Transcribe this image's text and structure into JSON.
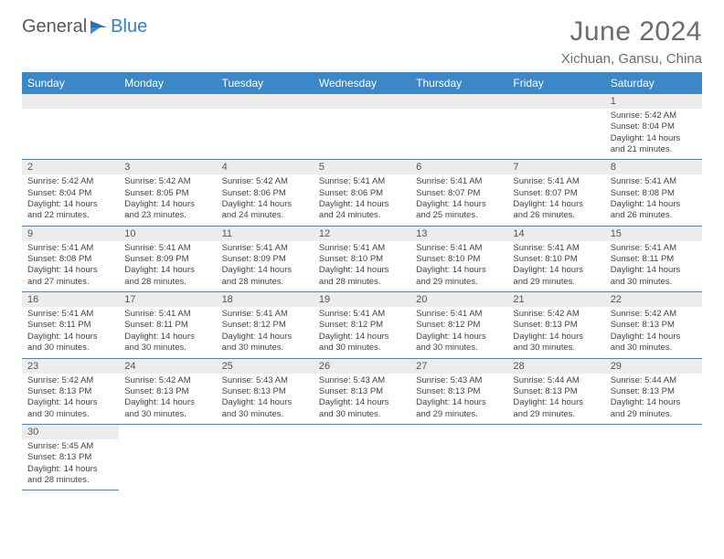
{
  "logo": {
    "part1": "General",
    "part2": "Blue"
  },
  "title": "June 2024",
  "location": "Xichuan, Gansu, China",
  "colors": {
    "header_bg": "#3c87c7",
    "header_fg": "#ffffff",
    "daynum_bg": "#ececec",
    "rule": "#3c87c7",
    "title_fg": "#6d6d6d",
    "logo_gray": "#555a5e",
    "logo_blue": "#3a7fc0"
  },
  "days_of_week": [
    "Sunday",
    "Monday",
    "Tuesday",
    "Wednesday",
    "Thursday",
    "Friday",
    "Saturday"
  ],
  "weeks": [
    [
      null,
      null,
      null,
      null,
      null,
      null,
      {
        "n": "1",
        "sunrise": "Sunrise: 5:42 AM",
        "sunset": "Sunset: 8:04 PM",
        "daylight1": "Daylight: 14 hours",
        "daylight2": "and 21 minutes."
      }
    ],
    [
      {
        "n": "2",
        "sunrise": "Sunrise: 5:42 AM",
        "sunset": "Sunset: 8:04 PM",
        "daylight1": "Daylight: 14 hours",
        "daylight2": "and 22 minutes."
      },
      {
        "n": "3",
        "sunrise": "Sunrise: 5:42 AM",
        "sunset": "Sunset: 8:05 PM",
        "daylight1": "Daylight: 14 hours",
        "daylight2": "and 23 minutes."
      },
      {
        "n": "4",
        "sunrise": "Sunrise: 5:42 AM",
        "sunset": "Sunset: 8:06 PM",
        "daylight1": "Daylight: 14 hours",
        "daylight2": "and 24 minutes."
      },
      {
        "n": "5",
        "sunrise": "Sunrise: 5:41 AM",
        "sunset": "Sunset: 8:06 PM",
        "daylight1": "Daylight: 14 hours",
        "daylight2": "and 24 minutes."
      },
      {
        "n": "6",
        "sunrise": "Sunrise: 5:41 AM",
        "sunset": "Sunset: 8:07 PM",
        "daylight1": "Daylight: 14 hours",
        "daylight2": "and 25 minutes."
      },
      {
        "n": "7",
        "sunrise": "Sunrise: 5:41 AM",
        "sunset": "Sunset: 8:07 PM",
        "daylight1": "Daylight: 14 hours",
        "daylight2": "and 26 minutes."
      },
      {
        "n": "8",
        "sunrise": "Sunrise: 5:41 AM",
        "sunset": "Sunset: 8:08 PM",
        "daylight1": "Daylight: 14 hours",
        "daylight2": "and 26 minutes."
      }
    ],
    [
      {
        "n": "9",
        "sunrise": "Sunrise: 5:41 AM",
        "sunset": "Sunset: 8:08 PM",
        "daylight1": "Daylight: 14 hours",
        "daylight2": "and 27 minutes."
      },
      {
        "n": "10",
        "sunrise": "Sunrise: 5:41 AM",
        "sunset": "Sunset: 8:09 PM",
        "daylight1": "Daylight: 14 hours",
        "daylight2": "and 28 minutes."
      },
      {
        "n": "11",
        "sunrise": "Sunrise: 5:41 AM",
        "sunset": "Sunset: 8:09 PM",
        "daylight1": "Daylight: 14 hours",
        "daylight2": "and 28 minutes."
      },
      {
        "n": "12",
        "sunrise": "Sunrise: 5:41 AM",
        "sunset": "Sunset: 8:10 PM",
        "daylight1": "Daylight: 14 hours",
        "daylight2": "and 28 minutes."
      },
      {
        "n": "13",
        "sunrise": "Sunrise: 5:41 AM",
        "sunset": "Sunset: 8:10 PM",
        "daylight1": "Daylight: 14 hours",
        "daylight2": "and 29 minutes."
      },
      {
        "n": "14",
        "sunrise": "Sunrise: 5:41 AM",
        "sunset": "Sunset: 8:10 PM",
        "daylight1": "Daylight: 14 hours",
        "daylight2": "and 29 minutes."
      },
      {
        "n": "15",
        "sunrise": "Sunrise: 5:41 AM",
        "sunset": "Sunset: 8:11 PM",
        "daylight1": "Daylight: 14 hours",
        "daylight2": "and 30 minutes."
      }
    ],
    [
      {
        "n": "16",
        "sunrise": "Sunrise: 5:41 AM",
        "sunset": "Sunset: 8:11 PM",
        "daylight1": "Daylight: 14 hours",
        "daylight2": "and 30 minutes."
      },
      {
        "n": "17",
        "sunrise": "Sunrise: 5:41 AM",
        "sunset": "Sunset: 8:11 PM",
        "daylight1": "Daylight: 14 hours",
        "daylight2": "and 30 minutes."
      },
      {
        "n": "18",
        "sunrise": "Sunrise: 5:41 AM",
        "sunset": "Sunset: 8:12 PM",
        "daylight1": "Daylight: 14 hours",
        "daylight2": "and 30 minutes."
      },
      {
        "n": "19",
        "sunrise": "Sunrise: 5:41 AM",
        "sunset": "Sunset: 8:12 PM",
        "daylight1": "Daylight: 14 hours",
        "daylight2": "and 30 minutes."
      },
      {
        "n": "20",
        "sunrise": "Sunrise: 5:41 AM",
        "sunset": "Sunset: 8:12 PM",
        "daylight1": "Daylight: 14 hours",
        "daylight2": "and 30 minutes."
      },
      {
        "n": "21",
        "sunrise": "Sunrise: 5:42 AM",
        "sunset": "Sunset: 8:13 PM",
        "daylight1": "Daylight: 14 hours",
        "daylight2": "and 30 minutes."
      },
      {
        "n": "22",
        "sunrise": "Sunrise: 5:42 AM",
        "sunset": "Sunset: 8:13 PM",
        "daylight1": "Daylight: 14 hours",
        "daylight2": "and 30 minutes."
      }
    ],
    [
      {
        "n": "23",
        "sunrise": "Sunrise: 5:42 AM",
        "sunset": "Sunset: 8:13 PM",
        "daylight1": "Daylight: 14 hours",
        "daylight2": "and 30 minutes."
      },
      {
        "n": "24",
        "sunrise": "Sunrise: 5:42 AM",
        "sunset": "Sunset: 8:13 PM",
        "daylight1": "Daylight: 14 hours",
        "daylight2": "and 30 minutes."
      },
      {
        "n": "25",
        "sunrise": "Sunrise: 5:43 AM",
        "sunset": "Sunset: 8:13 PM",
        "daylight1": "Daylight: 14 hours",
        "daylight2": "and 30 minutes."
      },
      {
        "n": "26",
        "sunrise": "Sunrise: 5:43 AM",
        "sunset": "Sunset: 8:13 PM",
        "daylight1": "Daylight: 14 hours",
        "daylight2": "and 30 minutes."
      },
      {
        "n": "27",
        "sunrise": "Sunrise: 5:43 AM",
        "sunset": "Sunset: 8:13 PM",
        "daylight1": "Daylight: 14 hours",
        "daylight2": "and 29 minutes."
      },
      {
        "n": "28",
        "sunrise": "Sunrise: 5:44 AM",
        "sunset": "Sunset: 8:13 PM",
        "daylight1": "Daylight: 14 hours",
        "daylight2": "and 29 minutes."
      },
      {
        "n": "29",
        "sunrise": "Sunrise: 5:44 AM",
        "sunset": "Sunset: 8:13 PM",
        "daylight1": "Daylight: 14 hours",
        "daylight2": "and 29 minutes."
      }
    ],
    [
      {
        "n": "30",
        "sunrise": "Sunrise: 5:45 AM",
        "sunset": "Sunset: 8:13 PM",
        "daylight1": "Daylight: 14 hours",
        "daylight2": "and 28 minutes."
      },
      null,
      null,
      null,
      null,
      null,
      null
    ]
  ]
}
